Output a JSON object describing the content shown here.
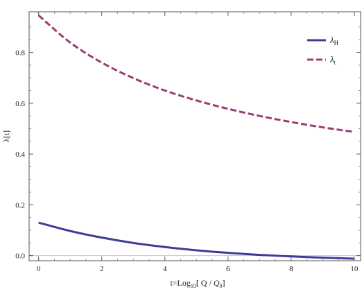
{
  "chart_data": {
    "type": "line",
    "xlabel": {
      "prefix": "t=Log",
      "sub": "10",
      "mid": "[ Q / ",
      "var": "Q",
      "var_sub": "0",
      "suffix": "]"
    },
    "ylabel": "λ[t]",
    "xlim": [
      -0.3,
      10.2
    ],
    "ylim": [
      -0.02,
      0.96
    ],
    "x_ticks": [
      0,
      2,
      4,
      6,
      8,
      10
    ],
    "x_tick_labels": [
      "0",
      "2",
      "4",
      "6",
      "8",
      "10"
    ],
    "y_ticks": [
      0.0,
      0.2,
      0.4,
      0.6,
      0.8
    ],
    "y_tick_labels": [
      "0.0",
      "0.2",
      "0.4",
      "0.6",
      "0.8"
    ],
    "grid": false,
    "zero_line": true,
    "legend_position": "top-right",
    "series": [
      {
        "name": "λH",
        "name_main": "λ",
        "name_sub": "H",
        "color": "#3d3d99",
        "dash": "solid",
        "x": [
          0,
          1,
          2,
          3,
          4,
          5,
          6,
          7,
          8,
          9,
          10
        ],
        "y": [
          0.13,
          0.097,
          0.071,
          0.05,
          0.034,
          0.021,
          0.011,
          0.003,
          -0.003,
          -0.008,
          -0.012
        ]
      },
      {
        "name": "λt",
        "name_main": "λ",
        "name_sub": "t",
        "color": "#9c3c72",
        "dash": "dashed",
        "x": [
          0,
          1,
          2,
          3,
          4,
          5,
          6,
          7,
          8,
          9,
          10
        ],
        "y": [
          0.946,
          0.839,
          0.76,
          0.699,
          0.65,
          0.611,
          0.578,
          0.55,
          0.526,
          0.505,
          0.487
        ]
      }
    ]
  }
}
